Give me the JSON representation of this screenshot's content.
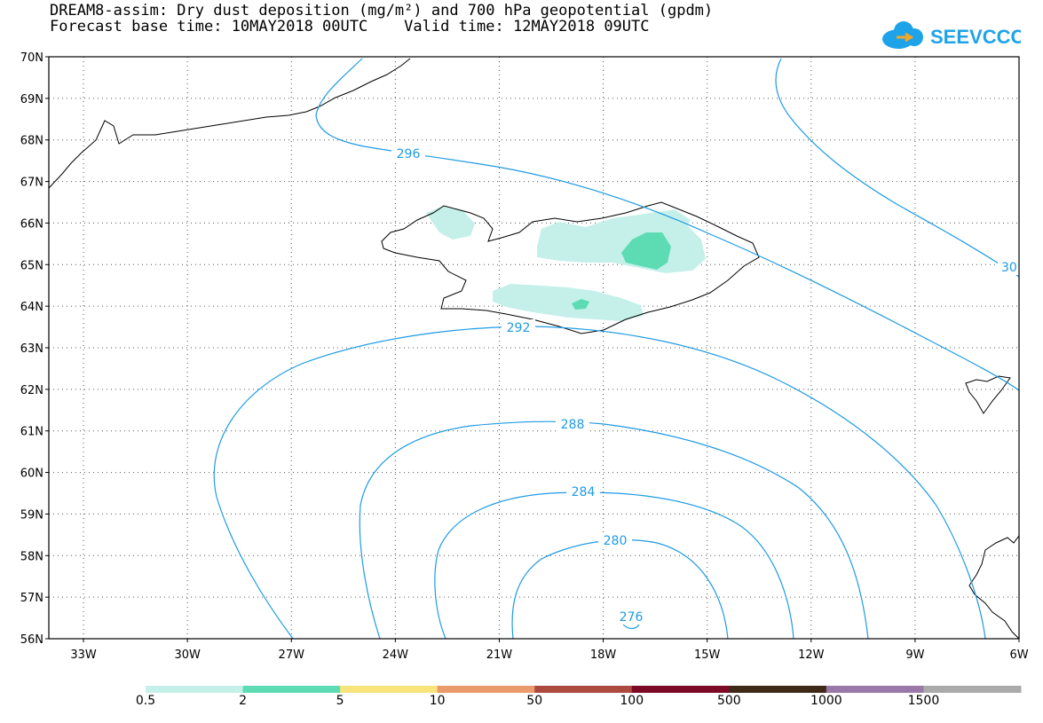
{
  "title_line1": "DREAM8-assim: Dry dust deposition (mg/m²) and 700 hPa geopotential (gpdm)",
  "title_line2": "Forecast base time: 10MAY2018 00UTC    Valid time: 12MAY2018 09UTC",
  "logo_text": "SEEVCCC",
  "lat_labels": [
    "70N",
    "69N",
    "68N",
    "67N",
    "66N",
    "65N",
    "64N",
    "63N",
    "62N",
    "61N",
    "60N",
    "59N",
    "58N",
    "57N",
    "56N"
  ],
  "lon_labels": [
    "33W",
    "30W",
    "27W",
    "24W",
    "21W",
    "18W",
    "15W",
    "12W",
    "9W",
    "6W"
  ],
  "contour_labels": [
    "296",
    "292",
    "288",
    "284",
    "280",
    "276",
    "30"
  ],
  "colorbar": {
    "colors": [
      "#c5f0ea",
      "#5ddcb4",
      "#f7e47a",
      "#ea9a6b",
      "#ad4a40",
      "#7c0a27",
      "#3f2a1a",
      "#9a78a8",
      "#aaaaaa"
    ],
    "labels": [
      "0.5",
      "2",
      "5",
      "10",
      "50",
      "100",
      "500",
      "1000",
      "1500"
    ]
  }
}
